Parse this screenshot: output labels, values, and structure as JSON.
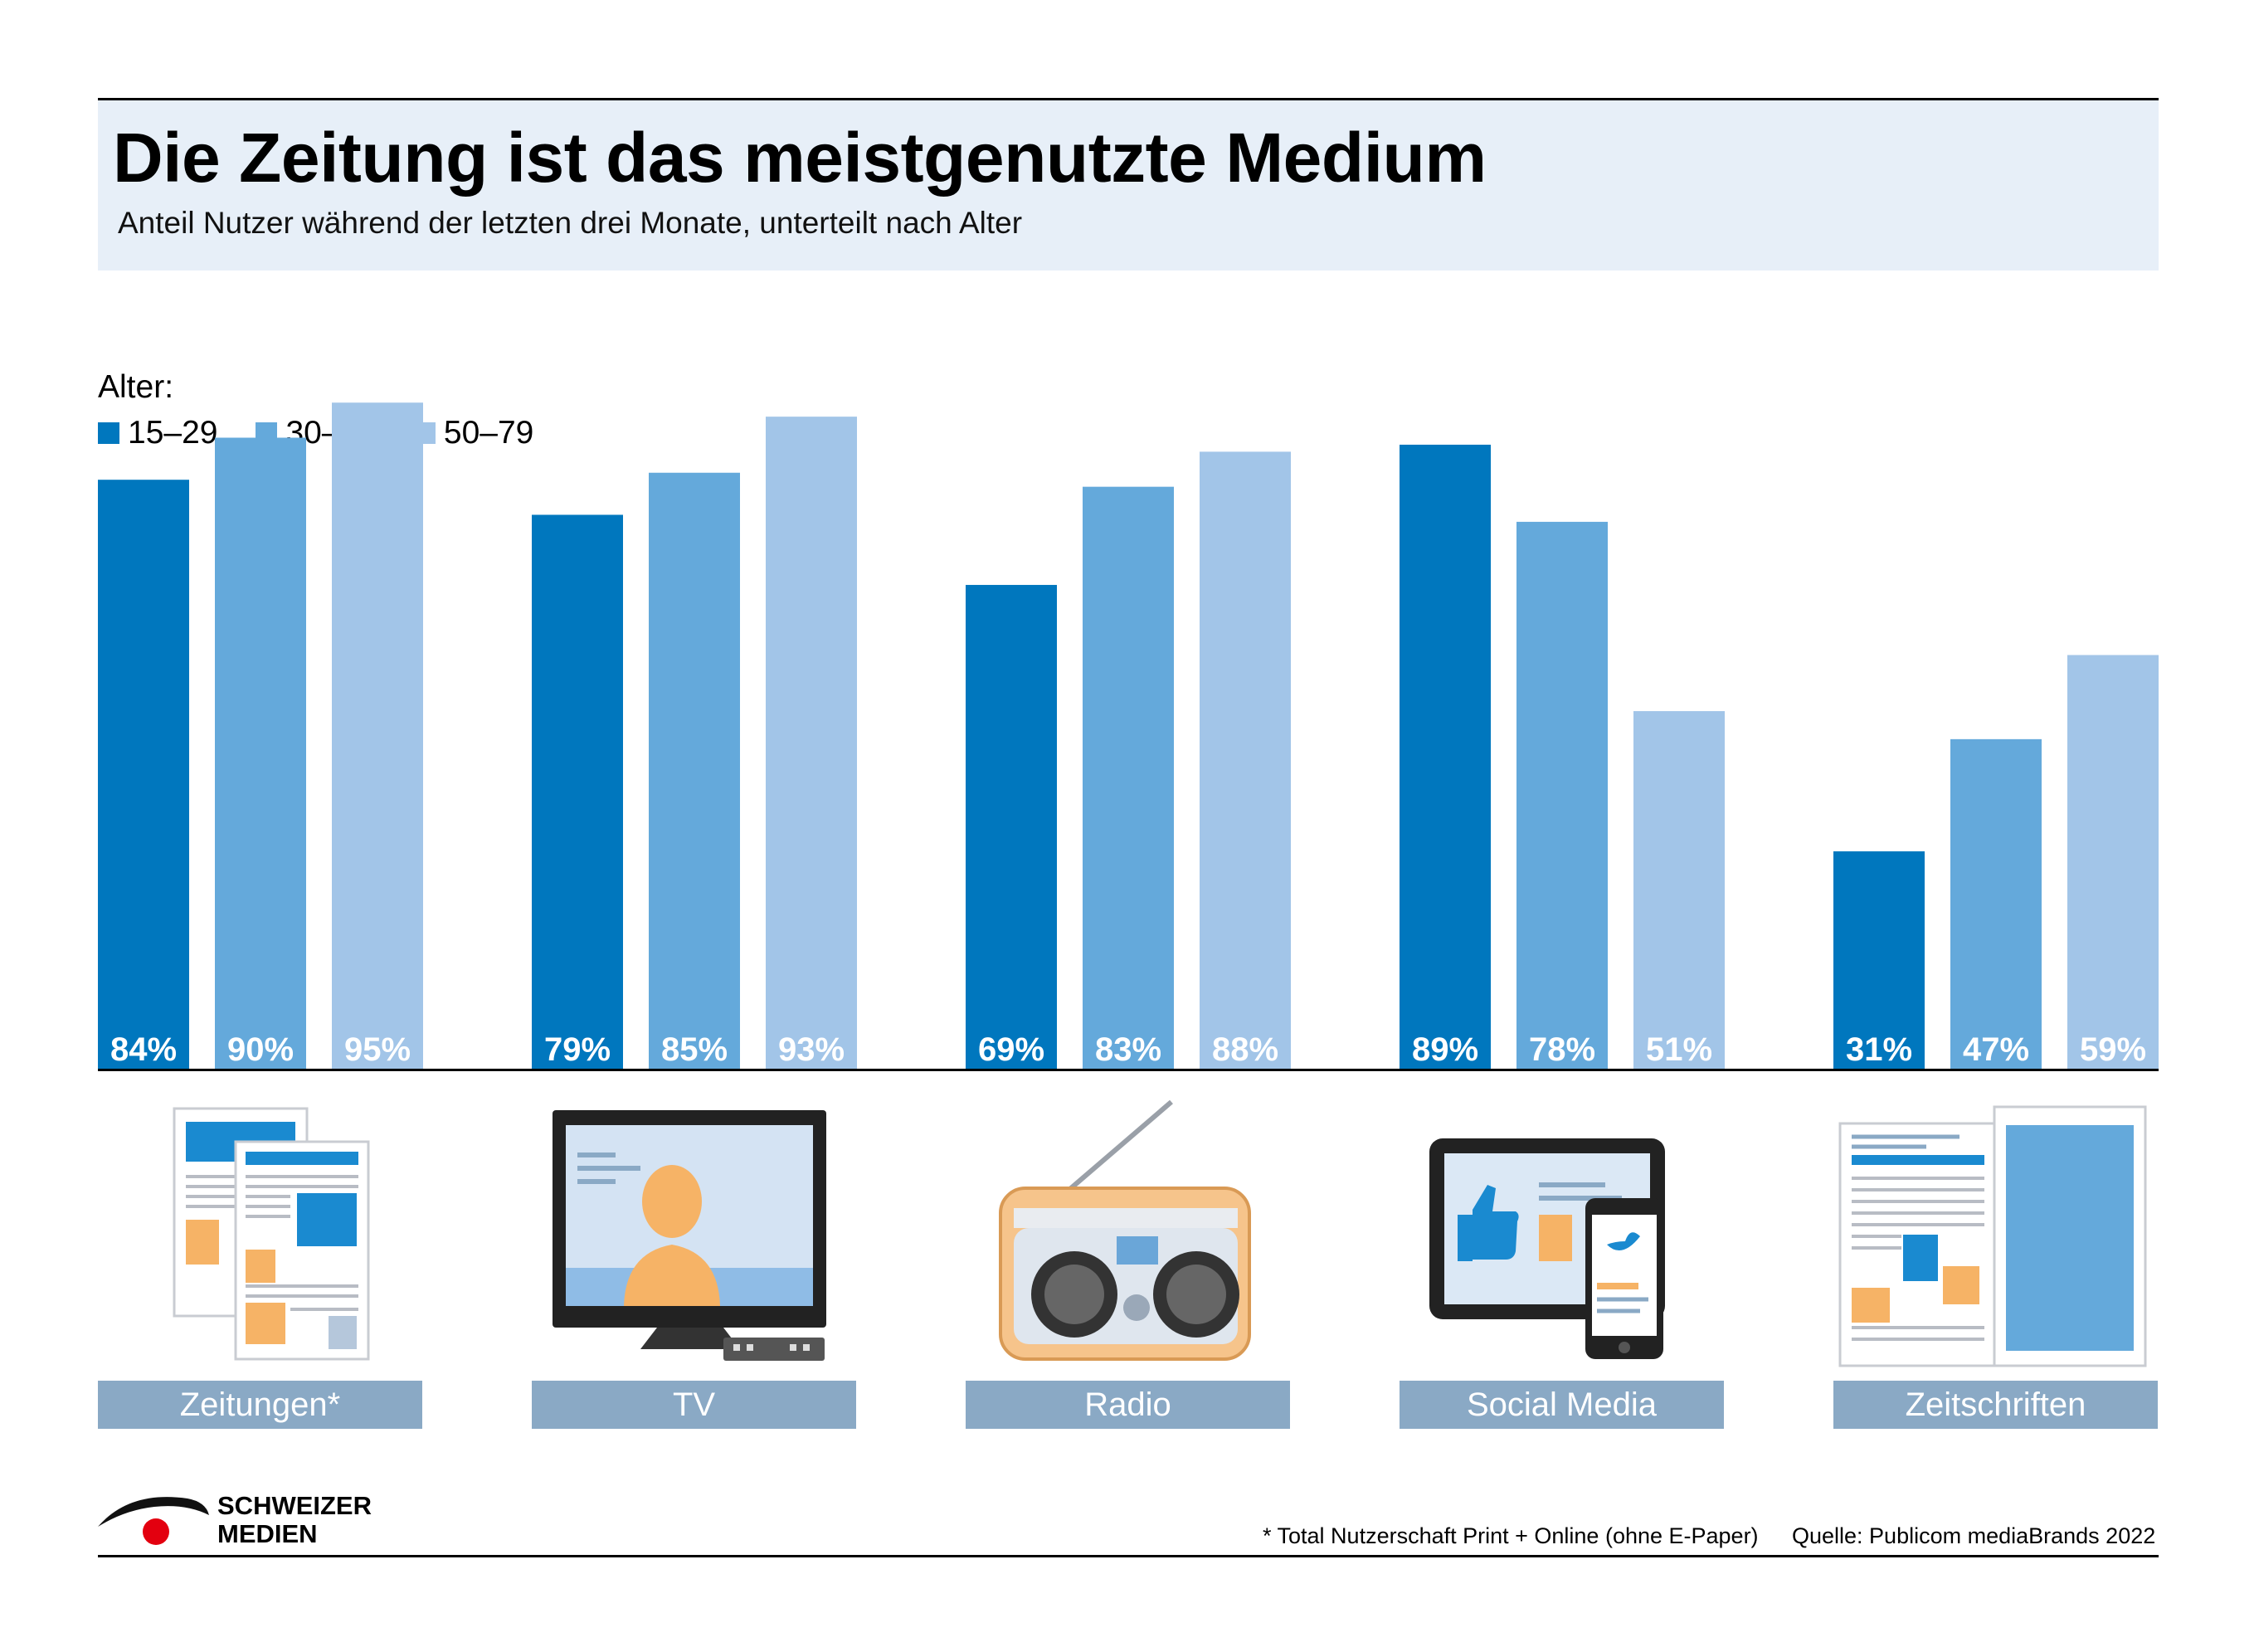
{
  "header": {
    "title": "Die Zeitung ist das meistgenutzte Medium",
    "subtitle": "Anteil Nutzer während der letzten drei Monate, unterteilt nach Alter"
  },
  "legend": {
    "title": "Alter:",
    "items": [
      {
        "label": "15–29",
        "color": "#0077be"
      },
      {
        "label": "30–49",
        "color": "#64a9db"
      },
      {
        "label": "50–79",
        "color": "#a2c5e8"
      }
    ]
  },
  "chart_data": {
    "type": "bar",
    "categories": [
      "Zeitungen*",
      "TV",
      "Radio",
      "Social Media",
      "Zeitschriften"
    ],
    "series": [
      {
        "name": "15–29",
        "values": [
          84,
          79,
          69,
          89,
          31
        ],
        "labels": [
          "84%",
          "79%",
          "69%",
          "89%",
          "31%"
        ]
      },
      {
        "name": "30–49",
        "values": [
          90,
          85,
          83,
          78,
          47
        ],
        "labels": [
          "90%",
          "85%",
          "83%",
          "78%",
          "47%"
        ]
      },
      {
        "name": "50–79",
        "values": [
          95,
          93,
          88,
          51,
          59
        ],
        "labels": [
          "95%",
          "93%",
          "88%",
          "51%",
          "59%"
        ]
      }
    ],
    "ylim": [
      0,
      100
    ],
    "value_unit": "%",
    "grid": false
  },
  "icons": [
    "newspaper-icon",
    "tv-icon",
    "radio-icon",
    "social-media-icon",
    "magazine-icon"
  ],
  "footer": {
    "logo_line1": "SCHWEIZER",
    "logo_line2": "MEDIEN",
    "footnote": "* Total Nutzerschaft Print + Online (ohne E-Paper)",
    "source": "Quelle: Publicom mediaBrands 2022"
  },
  "colors": {
    "header_bg": "#e7eff8",
    "category_bg": "#8aa9c5",
    "accent_orange": "#f6b366",
    "logo_red": "#e3000f"
  }
}
